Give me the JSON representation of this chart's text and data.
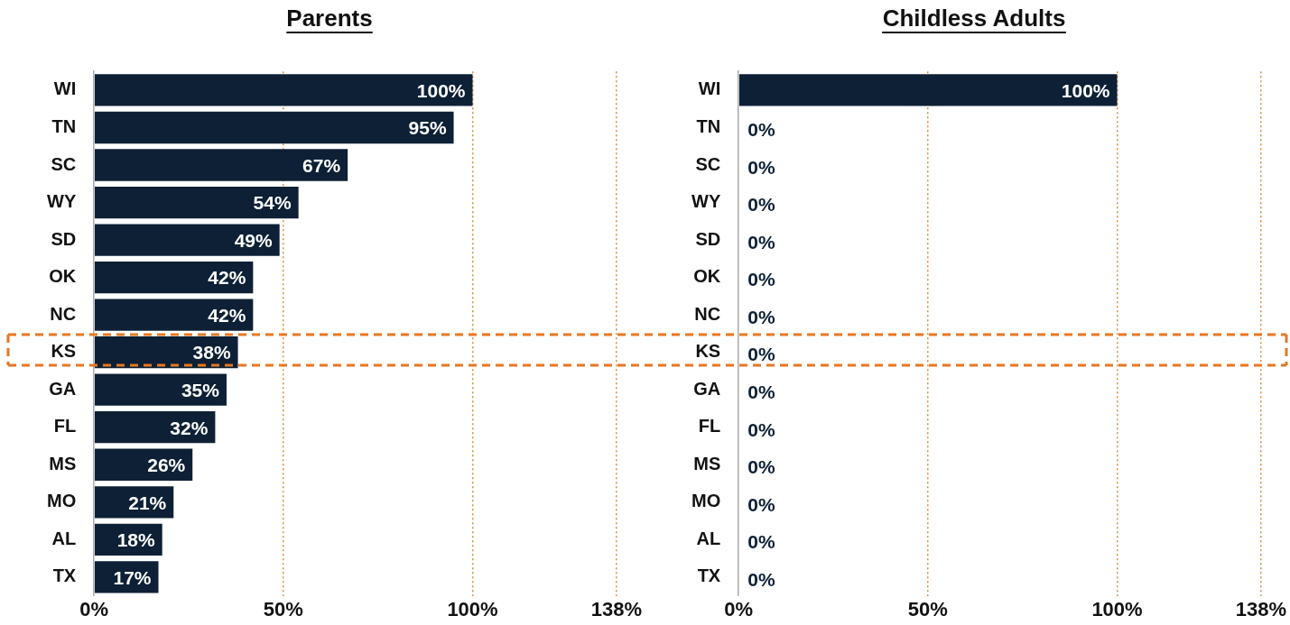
{
  "chart_data": [
    {
      "type": "bar",
      "orientation": "horizontal",
      "title": "Parents",
      "categories": [
        "WI",
        "TN",
        "SC",
        "WY",
        "SD",
        "OK",
        "NC",
        "KS",
        "GA",
        "FL",
        "MS",
        "MO",
        "AL",
        "TX"
      ],
      "series": [
        {
          "color": "#0d2035",
          "values": [
            100,
            95,
            67,
            54,
            49,
            42,
            42,
            38,
            35,
            32,
            26,
            21,
            18,
            17
          ],
          "value_labels": [
            "100%",
            "95%",
            "67%",
            "54%",
            "49%",
            "42%",
            "42%",
            "38%",
            "35%",
            "32%",
            "26%",
            "21%",
            "18%",
            "17%"
          ]
        }
      ],
      "xlim": [
        0,
        138
      ],
      "xticks": [
        {
          "value": 0,
          "label": "0%"
        },
        {
          "value": 50,
          "label": "50%"
        },
        {
          "value": 100,
          "label": "100%"
        },
        {
          "value": 138,
          "label": "138%"
        }
      ],
      "grid": "x",
      "legend": false
    },
    {
      "type": "bar",
      "orientation": "horizontal",
      "title": "Childless Adults",
      "categories": [
        "WI",
        "TN",
        "SC",
        "WY",
        "SD",
        "OK",
        "NC",
        "KS",
        "GA",
        "FL",
        "MS",
        "MO",
        "AL",
        "TX"
      ],
      "series": [
        {
          "color": "#0d2035",
          "values": [
            100,
            0,
            0,
            0,
            0,
            0,
            0,
            0,
            0,
            0,
            0,
            0,
            0,
            0
          ],
          "value_labels": [
            "100%",
            "0%",
            "0%",
            "0%",
            "0%",
            "0%",
            "0%",
            "0%",
            "0%",
            "0%",
            "0%",
            "0%",
            "0%",
            "0%"
          ]
        }
      ],
      "xlim": [
        0,
        138
      ],
      "xticks": [
        {
          "value": 0,
          "label": "0%"
        },
        {
          "value": 50,
          "label": "50%"
        },
        {
          "value": 100,
          "label": "100%"
        },
        {
          "value": 138,
          "label": "138%"
        }
      ],
      "grid": "x",
      "legend": false
    }
  ]
}
